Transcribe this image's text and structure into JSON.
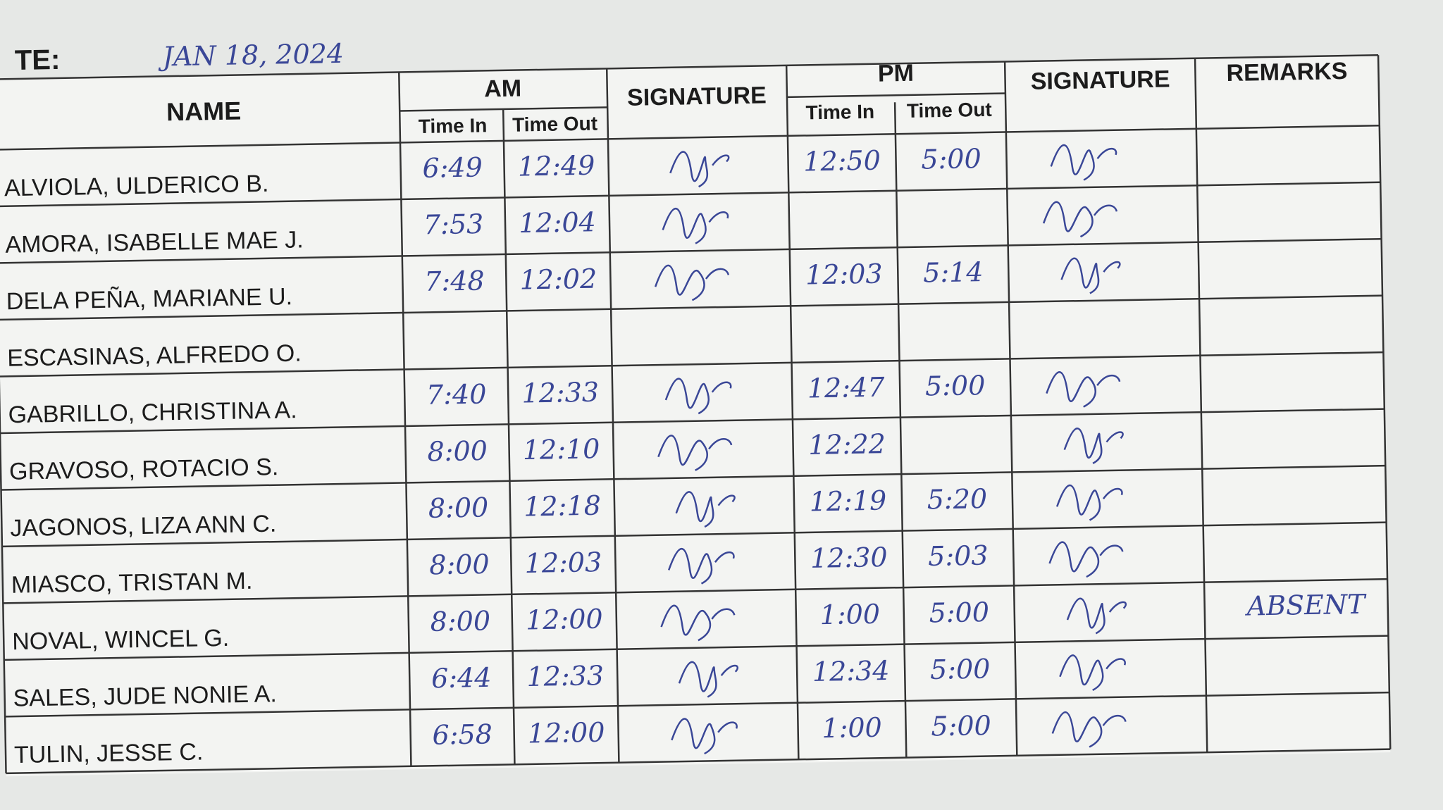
{
  "header": {
    "date_label": "TE:",
    "date": "JAN 18, 2024"
  },
  "table": {
    "columns": {
      "name": "NAME",
      "am": "AM",
      "pm": "PM",
      "time_in": "Time In",
      "time_out": "Time Out",
      "signature": "SIGNATURE",
      "remarks": "REMARKS"
    },
    "rows": [
      [
        "ALVIOLA, ULDERICO B.",
        "6:49",
        "12:49",
        "12:50",
        "5:00",
        null
      ],
      [
        "AMORA, ISABELLE MAE J.",
        "7:53",
        "12:04",
        null,
        null,
        null
      ],
      [
        "DELA PEÑA, MARIANE U.",
        "7:48",
        "12:02",
        "12:03",
        "5:14",
        null
      ],
      [
        "ESCASINAS, ALFREDO O.",
        null,
        null,
        null,
        null,
        null
      ],
      [
        "GABRILLO, CHRISTINA A.",
        "7:40",
        "12:33",
        "12:47",
        "5:00",
        null
      ],
      [
        "GRAVOSO, ROTACIO S.",
        "8:00",
        "12:10",
        "12:22",
        null,
        null
      ],
      [
        "JAGONOS, LIZA ANN C.",
        "8:00",
        "12:18",
        "12:19",
        "5:20",
        null
      ],
      [
        "MIASCO, TRISTAN M.",
        "8:00",
        "12:03",
        "12:30",
        "5:03",
        null
      ],
      [
        "NOVAL, WINCEL G.",
        "8:00",
        "12:00",
        "1:00",
        "5:00",
        "ABSENT"
      ],
      [
        "SALES, JUDE NONIE A.",
        "6:44",
        "12:33",
        "12:34",
        "5:00",
        null
      ],
      [
        "TULIN, JESSE C.",
        "6:58",
        "12:00",
        "1:00",
        "5:00",
        null
      ]
    ]
  }
}
